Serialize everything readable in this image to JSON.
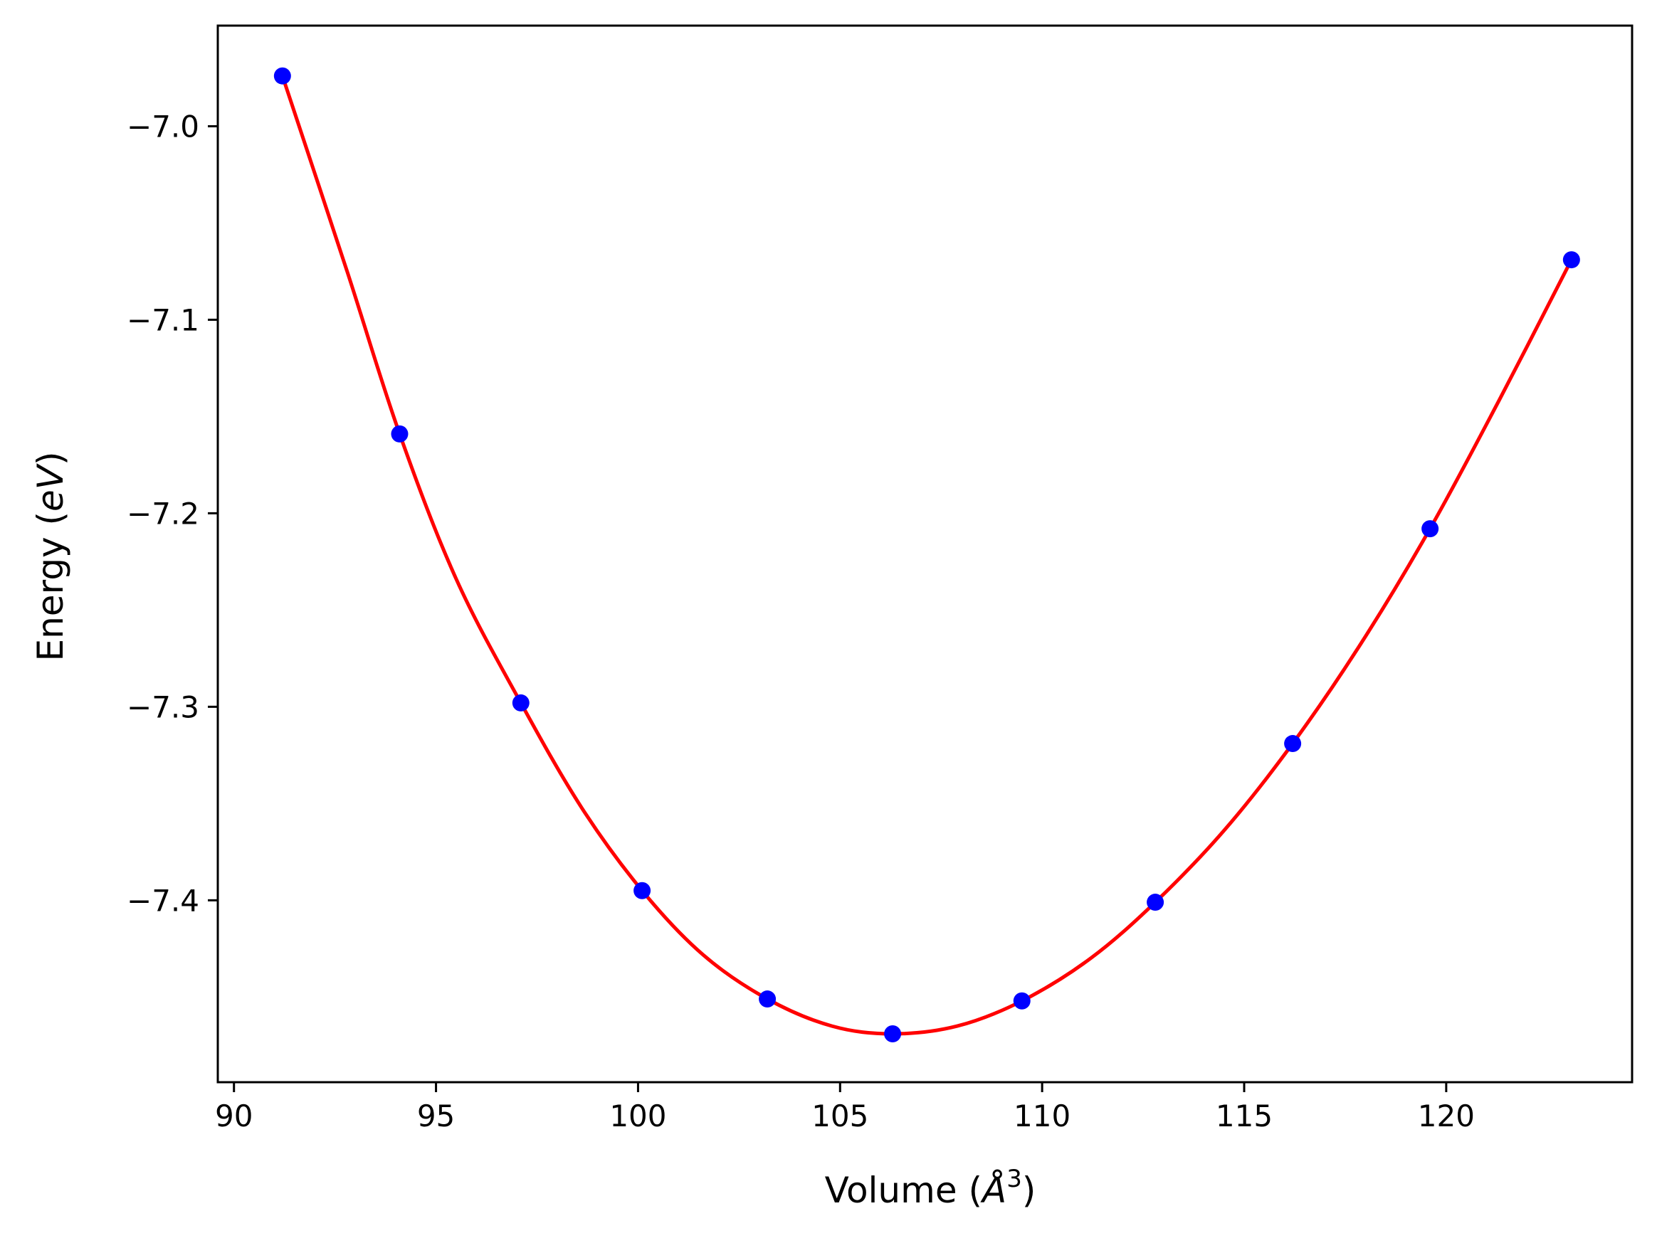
{
  "chart_data": {
    "type": "scatter",
    "title": "",
    "xlabel": "Volume (Å³)",
    "ylabel": "Energy (eV)",
    "xlabel_parts": [
      "Volume (",
      "Å",
      "3",
      ")"
    ],
    "ylabel_parts": [
      "Energy (",
      "eV",
      ")"
    ],
    "xlim": [
      89.6,
      124.6
    ],
    "ylim": [
      -7.494,
      -6.948
    ],
    "xticks": [
      90,
      95,
      100,
      105,
      110,
      115,
      120
    ],
    "xtick_labels": [
      "90",
      "95",
      "100",
      "105",
      "110",
      "115",
      "120"
    ],
    "yticks": [
      -7.0,
      -7.1,
      -7.2,
      -7.3,
      -7.4
    ],
    "ytick_labels": [
      "−7.0",
      "−7.1",
      "−7.2",
      "−7.3",
      "−7.4"
    ],
    "grid": false,
    "series": [
      {
        "kind": "points",
        "color": "#0000ff",
        "x": [
          91.2,
          94.1,
          97.1,
          100.1,
          103.2,
          106.3,
          109.5,
          112.8,
          116.2,
          119.6,
          123.1
        ],
        "y": [
          -6.974,
          -7.159,
          -7.298,
          -7.395,
          -7.451,
          -7.469,
          -7.452,
          -7.401,
          -7.319,
          -7.208,
          -7.069
        ]
      },
      {
        "kind": "fit_curve",
        "color": "#ff0000",
        "x": [
          91.2,
          92.8,
          94.1,
          95.5,
          97.1,
          98.6,
          100.1,
          101.6,
          103.2,
          104.8,
          106.3,
          107.9,
          109.5,
          111.2,
          112.8,
          114.5,
          116.2,
          117.9,
          119.6,
          121.3,
          123.1
        ],
        "y": [
          -6.974,
          -7.075,
          -7.159,
          -7.234,
          -7.298,
          -7.352,
          -7.395,
          -7.428,
          -7.451,
          -7.465,
          -7.469,
          -7.465,
          -7.452,
          -7.43,
          -7.401,
          -7.364,
          -7.319,
          -7.267,
          -7.208,
          -7.142,
          -7.069
        ]
      }
    ]
  }
}
